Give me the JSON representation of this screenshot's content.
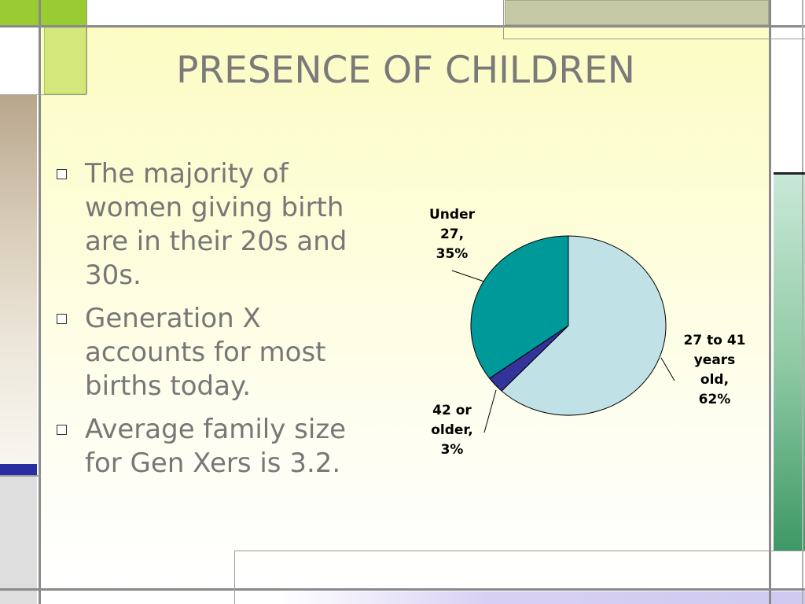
{
  "slide": {
    "title": "PRESENCE OF CHILDREN",
    "bullets": [
      {
        "text": "The majority of women giving birth are in their 20s and 30s."
      },
      {
        "text": "Generation X accounts for most births today."
      },
      {
        "text": "Average family size for Gen Xers is 3.2."
      }
    ]
  },
  "chart_data": {
    "type": "pie",
    "title": "",
    "slices": [
      {
        "label_lines": [
          "27 to 41",
          "years",
          "old,",
          "62%"
        ],
        "category": "27 to 41 years old",
        "value": 62,
        "color": "#c0e2e6"
      },
      {
        "label_lines": [
          "42 or",
          "older,",
          "3%"
        ],
        "category": "42 or older",
        "value": 3,
        "color": "#333399"
      },
      {
        "label_lines": [
          "Under",
          "27,",
          "35%"
        ],
        "category": "Under 27",
        "value": 35,
        "color": "#009999"
      }
    ],
    "start_angle_deg": 0,
    "direction": "clockwise",
    "legend": "none"
  },
  "colors": {
    "title_text": "#7a7a7a",
    "body_text": "#777777",
    "panel_top": "#fcfcc4",
    "accent_lime": "#99cc33",
    "accent_navy": "#2b2ea0",
    "accent_green": "#3e9866"
  }
}
